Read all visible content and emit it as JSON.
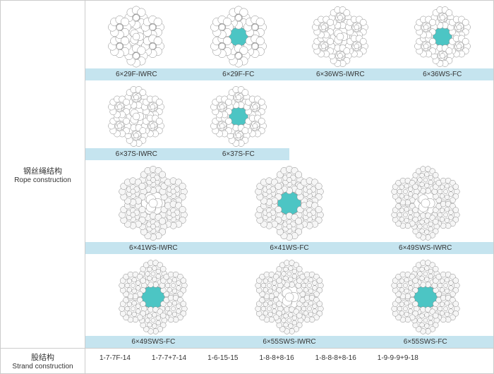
{
  "labels": {
    "rope_cn": "钢丝绳结构",
    "rope_en": "Rope construction",
    "strand_cn": "股结构",
    "strand_en": "Strand construction"
  },
  "colors": {
    "band": "#c5e4ef",
    "fc_fill": "#4cc5c4",
    "wire_stroke": "#888888",
    "wire_fill": "#ffffff",
    "dense_fill": "#f6f6f6"
  },
  "row1": [
    {
      "label": "6×29F-IWRC",
      "fc": false,
      "size": 90,
      "wires": 8
    },
    {
      "label": "6×29F-FC",
      "fc": true,
      "size": 90,
      "wires": 8
    },
    {
      "label": "6×36WS-IWRC",
      "fc": false,
      "size": 90,
      "wires": 10
    },
    {
      "label": "6×36WS-FC",
      "fc": true,
      "size": 90,
      "wires": 10
    }
  ],
  "row2": [
    {
      "label": "6×37S-IWRC",
      "fc": false,
      "size": 90,
      "wires": 10
    },
    {
      "label": "6×37S-FC",
      "fc": true,
      "size": 90,
      "wires": 10
    }
  ],
  "row3": [
    {
      "label": "6×41WS-IWRC",
      "fc": false,
      "size": 110,
      "wires": 12
    },
    {
      "label": "6×41WS-FC",
      "fc": true,
      "size": 110,
      "wires": 12
    },
    {
      "label": "6×49SWS-IWRC",
      "fc": false,
      "size": 110,
      "wires": 14
    }
  ],
  "row4": [
    {
      "label": "6×49SWS-FC",
      "fc": true,
      "size": 110,
      "wires": 14
    },
    {
      "label": "6×55SWS-IWRC",
      "fc": false,
      "size": 110,
      "wires": 14
    },
    {
      "label": "6×55SWS-FC",
      "fc": true,
      "size": 110,
      "wires": 14
    }
  ],
  "strand_values": [
    "1-7-7F-14",
    "1-7-7+7-14",
    "1-6-15-15",
    "1-8-8+8-16",
    "1-8-8-8+8-16",
    "1-9-9-9+9-18"
  ]
}
